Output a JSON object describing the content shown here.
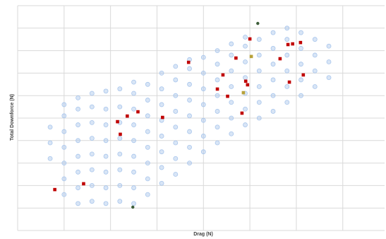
{
  "chart_data": {
    "type": "scatter",
    "x_label": "Drag (N)",
    "y_label": "Total Downforce (N)",
    "xlim": [
      0,
      7.9
    ],
    "ylim": [
      0,
      10
    ],
    "xticks": [
      0,
      1,
      2,
      3,
      4,
      5,
      6,
      7
    ],
    "yticks": [
      0,
      1,
      2,
      3,
      4,
      5,
      6,
      7,
      8,
      9,
      10
    ],
    "grid": true,
    "series": [
      {
        "color": "#a9c6ec",
        "marker": "circle",
        "x": [
          0.7,
          0.7,
          0.7,
          1.0,
          1.0,
          1.0,
          1.0,
          1.0,
          1.0,
          1.0,
          1.3,
          1.3,
          1.3,
          1.3,
          1.3,
          1.3,
          1.3,
          1.3,
          1.6,
          1.6,
          1.6,
          1.6,
          1.6,
          1.6,
          1.6,
          1.6,
          1.9,
          1.9,
          1.9,
          1.9,
          1.9,
          1.9,
          1.9,
          1.9,
          2.2,
          2.2,
          2.2,
          2.2,
          2.2,
          2.2,
          2.2,
          2.2,
          2.5,
          2.5,
          2.5,
          2.5,
          2.5,
          2.5,
          2.5,
          2.5,
          2.5,
          2.8,
          2.8,
          2.8,
          2.8,
          2.8,
          2.8,
          2.8,
          2.8,
          3.1,
          3.1,
          3.1,
          3.1,
          3.1,
          3.1,
          3.1,
          3.1,
          3.4,
          3.4,
          3.4,
          3.4,
          3.4,
          3.4,
          3.4,
          3.4,
          3.7,
          3.7,
          3.7,
          3.7,
          3.7,
          3.7,
          3.7,
          3.7,
          4.0,
          4.0,
          4.0,
          4.0,
          4.0,
          4.0,
          4.0,
          4.3,
          4.3,
          4.3,
          4.3,
          4.3,
          4.3,
          4.3,
          4.6,
          4.6,
          4.6,
          4.6,
          4.6,
          4.6,
          4.6,
          4.9,
          4.9,
          4.9,
          4.9,
          4.9,
          4.9,
          4.9,
          5.2,
          5.2,
          5.2,
          5.2,
          5.2,
          5.2,
          5.5,
          5.5,
          5.5,
          5.5,
          5.5,
          5.5,
          5.8,
          5.8,
          5.8,
          5.8,
          5.8,
          5.8,
          6.1,
          6.1,
          6.1,
          6.1,
          6.1,
          6.4,
          6.4,
          6.4,
          6.4,
          6.7,
          6.7,
          6.7
        ],
        "values": [
          3.2,
          3.9,
          4.6,
          1.6,
          2.3,
          3.0,
          3.7,
          4.4,
          5.1,
          5.6,
          1.2,
          1.9,
          2.6,
          3.3,
          4.0,
          4.7,
          5.4,
          5.9,
          1.3,
          2.0,
          2.7,
          3.4,
          4.1,
          4.8,
          5.5,
          6.1,
          1.2,
          1.9,
          2.6,
          3.3,
          4.0,
          4.7,
          5.4,
          6.2,
          1.3,
          2.0,
          2.7,
          3.4,
          4.1,
          4.8,
          5.5,
          6.3,
          1.2,
          1.9,
          2.6,
          3.3,
          4.0,
          4.7,
          5.4,
          6.1,
          6.6,
          1.6,
          2.3,
          3.0,
          3.7,
          4.4,
          5.1,
          5.8,
          6.5,
          2.1,
          2.8,
          3.5,
          4.2,
          4.9,
          5.6,
          6.3,
          7.0,
          2.5,
          3.2,
          3.9,
          4.6,
          5.3,
          6.0,
          6.7,
          7.3,
          3.0,
          3.7,
          4.4,
          5.1,
          5.8,
          6.5,
          7.2,
          7.6,
          3.5,
          4.2,
          4.9,
          5.6,
          6.3,
          7.0,
          7.7,
          3.9,
          4.6,
          5.3,
          6.0,
          6.7,
          7.4,
          8.0,
          4.3,
          5.0,
          5.7,
          6.4,
          7.1,
          7.8,
          8.3,
          4.7,
          5.4,
          6.1,
          6.8,
          7.5,
          8.2,
          8.6,
          5.0,
          5.7,
          6.4,
          7.1,
          7.8,
          8.5,
          5.3,
          6.0,
          6.7,
          7.4,
          8.1,
          8.8,
          5.7,
          6.4,
          7.1,
          7.8,
          8.5,
          9.0,
          6.0,
          6.7,
          7.4,
          8.1,
          8.8,
          6.4,
          7.1,
          7.8,
          8.5,
          6.8,
          7.5,
          8.2
        ]
      },
      {
        "color": "#c00000",
        "marker": "square",
        "x": [
          0.8,
          1.42,
          2.15,
          2.36,
          2.59,
          2.21,
          3.12,
          3.68,
          4.7,
          5.0,
          4.42,
          4.3,
          4.52,
          4.83,
          4.91,
          4.95,
          5.82,
          5.92,
          6.09,
          5.65,
          6.15,
          5.85
        ],
        "values": [
          1.82,
          2.08,
          4.84,
          5.09,
          5.28,
          4.28,
          5.03,
          7.48,
          7.67,
          8.52,
          6.92,
          6.29,
          5.97,
          5.22,
          6.64,
          6.48,
          8.27,
          8.3,
          8.36,
          7.64,
          6.92,
          6.6
        ]
      },
      {
        "color": "#b8a23a",
        "marker": "square",
        "x": [
          5.03,
          4.86
        ],
        "values": [
          7.74,
          6.13
        ]
      },
      {
        "color": "#3d5e3a",
        "marker": "circle",
        "x": [
          5.17,
          2.48
        ],
        "values": [
          9.21,
          1.04
        ]
      }
    ]
  }
}
